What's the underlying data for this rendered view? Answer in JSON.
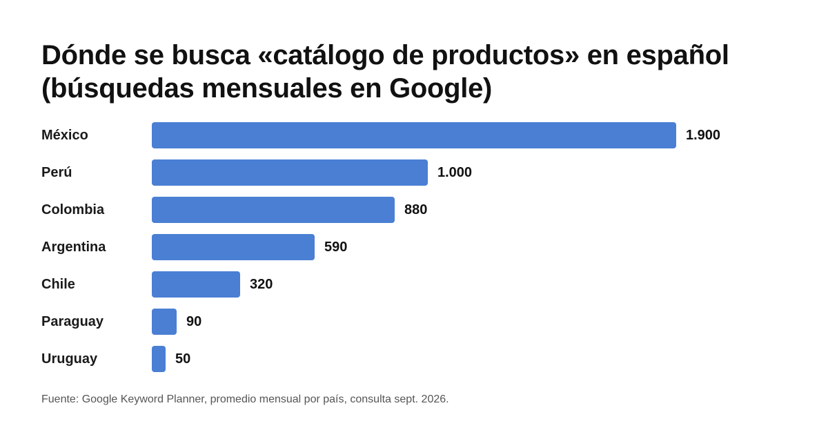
{
  "title": {
    "line1": "Dónde se busca «catálogo de productos» en español",
    "line2": "(búsquedas mensuales en Google)"
  },
  "source": "Fuente: Google Keyword Planner, promedio mensual por país, consulta sept. 2026.",
  "colors": {
    "bar": "#4a7fd4",
    "text": "#111111"
  },
  "chart_data": {
    "type": "bar",
    "orientation": "horizontal",
    "title": "Dónde se busca «catálogo de productos» en español (búsquedas mensuales en Google)",
    "categories": [
      "México",
      "Perú",
      "Colombia",
      "Argentina",
      "Chile",
      "Paraguay",
      "Uruguay"
    ],
    "values": [
      1900,
      1000,
      880,
      590,
      320,
      90,
      50
    ],
    "value_labels": [
      "1.900",
      "1.000",
      "880",
      "590",
      "320",
      "90",
      "50"
    ],
    "xlabel": "",
    "ylabel": "",
    "xlim": [
      0,
      1900
    ],
    "grid": false,
    "legend": "none"
  }
}
